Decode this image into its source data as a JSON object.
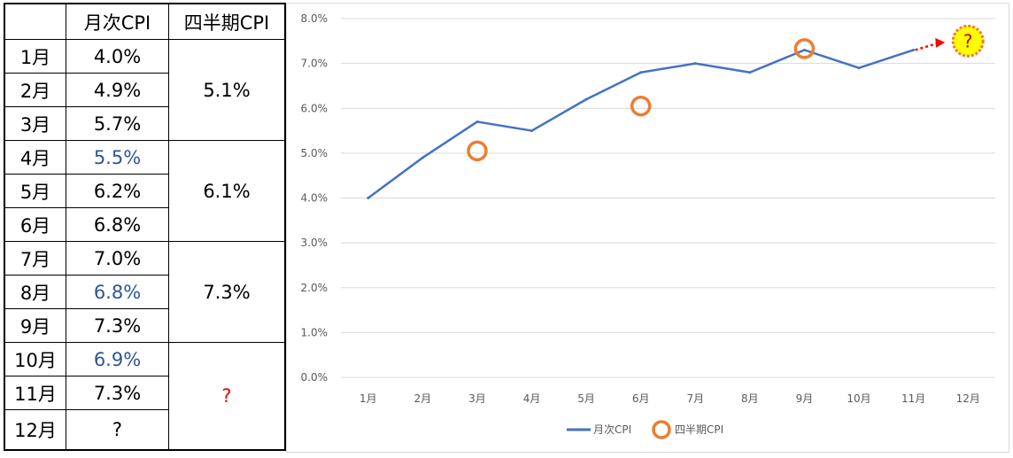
{
  "table": {
    "headers": [
      "",
      "月次CPI",
      "四半期CPI"
    ],
    "rows": [
      {
        "month": "1月",
        "monthly": "4.0%",
        "highlight": false
      },
      {
        "month": "2月",
        "monthly": "4.9%",
        "highlight": false
      },
      {
        "month": "3月",
        "monthly": "5.7%",
        "highlight": false
      },
      {
        "month": "4月",
        "monthly": "5.5%",
        "highlight": true
      },
      {
        "month": "5月",
        "monthly": "6.2%",
        "highlight": false
      },
      {
        "month": "6月",
        "monthly": "6.8%",
        "highlight": false
      },
      {
        "month": "7月",
        "monthly": "7.0%",
        "highlight": false
      },
      {
        "month": "8月",
        "monthly": "6.8%",
        "highlight": true
      },
      {
        "month": "9月",
        "monthly": "7.3%",
        "highlight": false
      },
      {
        "month": "10月",
        "monthly": "6.9%",
        "highlight": true
      },
      {
        "month": "11月",
        "monthly": "7.3%",
        "highlight": false
      },
      {
        "month": "12月",
        "monthly": "?",
        "highlight": false
      }
    ],
    "quarters": [
      "5.1%",
      "6.1%",
      "7.3%",
      "?"
    ],
    "highlight_color": "#2f5597",
    "unknown_color": "#ee0000"
  },
  "chart_data": {
    "type": "line",
    "categories": [
      "1月",
      "2月",
      "3月",
      "4月",
      "5月",
      "6月",
      "7月",
      "8月",
      "9月",
      "10月",
      "11月",
      "12月"
    ],
    "series": [
      {
        "name": "月次CPI",
        "kind": "line",
        "color": "#4472c4",
        "values": [
          4.0,
          4.9,
          5.7,
          5.5,
          6.2,
          6.8,
          7.0,
          6.8,
          7.3,
          6.9,
          7.3,
          null
        ]
      },
      {
        "name": "四半期CPI",
        "kind": "marker",
        "color": "#ed7d31",
        "values": [
          null,
          null,
          5.05,
          null,
          null,
          6.05,
          null,
          null,
          7.33,
          null,
          null,
          null
        ]
      }
    ],
    "yticks": [
      "0.0%",
      "1.0%",
      "2.0%",
      "3.0%",
      "4.0%",
      "5.0%",
      "6.0%",
      "7.0%",
      "8.0%"
    ],
    "ylim": [
      0,
      8
    ],
    "grid": true,
    "legend": "bottom",
    "forecast": {
      "from_index": 10,
      "to_index": 11,
      "from_value": 7.3,
      "to_value": 7.5,
      "label": "?",
      "arrow_color": "#ff0000",
      "fill_color": "#ffff00",
      "ring_color": "#ed7d31"
    }
  }
}
